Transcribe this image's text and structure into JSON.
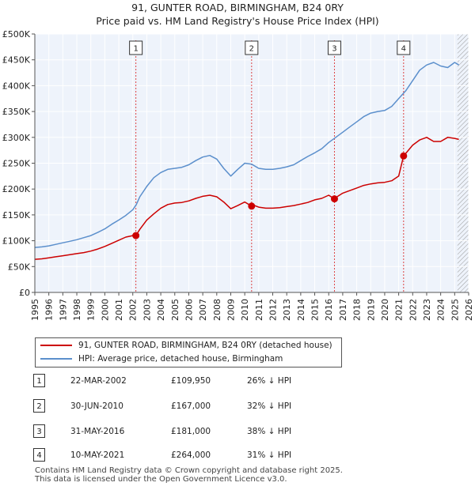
{
  "title_line1": "91, GUNTER ROAD, BIRMINGHAM, B24 0RY",
  "title_line2": "Price paid vs. HM Land Registry's House Price Index (HPI)",
  "chart_data": {
    "type": "line",
    "xlim": [
      1995,
      2026
    ],
    "ylim": [
      0,
      500000
    ],
    "y_ticks": [
      0,
      50000,
      100000,
      150000,
      200000,
      250000,
      300000,
      350000,
      400000,
      450000,
      500000
    ],
    "y_tick_labels": [
      "£0",
      "£50K",
      "£100K",
      "£150K",
      "£200K",
      "£250K",
      "£300K",
      "£350K",
      "£400K",
      "£450K",
      "£500K"
    ],
    "x_ticks": [
      1995,
      1996,
      1997,
      1998,
      1999,
      2000,
      2001,
      2002,
      2003,
      2004,
      2005,
      2006,
      2007,
      2008,
      2009,
      2010,
      2011,
      2012,
      2013,
      2014,
      2015,
      2016,
      2017,
      2018,
      2019,
      2020,
      2021,
      2022,
      2023,
      2024,
      2025,
      2026
    ],
    "x_tick_labels": [
      "1995",
      "1996",
      "1997",
      "1998",
      "1999",
      "2000",
      "2001",
      "2002",
      "2003",
      "2004",
      "2005",
      "2006",
      "2007",
      "2008",
      "2009",
      "2010",
      "2011",
      "2012",
      "2013",
      "2014",
      "2015",
      "2016",
      "2017",
      "2018",
      "2019",
      "2020",
      "2021",
      "2022",
      "2023",
      "2024",
      "2025",
      "2026"
    ],
    "hatch_from": 2025.2,
    "series": [
      {
        "name": "HPI: Average price, detached house, Birmingham",
        "color": "#5b8fcc",
        "x": [
          1995.0,
          1995.5,
          1996.0,
          1996.5,
          1997.0,
          1997.5,
          1998.0,
          1998.5,
          1999.0,
          1999.5,
          2000.0,
          2000.5,
          2001.0,
          2001.5,
          2002.0,
          2002.25,
          2002.5,
          2003.0,
          2003.5,
          2004.0,
          2004.5,
          2005.0,
          2005.5,
          2006.0,
          2006.5,
          2007.0,
          2007.5,
          2008.0,
          2008.5,
          2009.0,
          2009.5,
          2010.0,
          2010.5,
          2011.0,
          2011.5,
          2012.0,
          2012.5,
          2013.0,
          2013.5,
          2014.0,
          2014.5,
          2015.0,
          2015.5,
          2016.0,
          2016.5,
          2017.0,
          2017.5,
          2018.0,
          2018.5,
          2019.0,
          2019.5,
          2020.0,
          2020.5,
          2021.0,
          2021.5,
          2022.0,
          2022.5,
          2023.0,
          2023.5,
          2024.0,
          2024.5,
          2025.0,
          2025.3
        ],
        "y": [
          87000,
          88000,
          90000,
          93000,
          96000,
          99000,
          102000,
          106000,
          110000,
          116000,
          123000,
          132000,
          140000,
          149000,
          160000,
          170000,
          185000,
          205000,
          222000,
          232000,
          238000,
          240000,
          242000,
          247000,
          255000,
          262000,
          265000,
          258000,
          240000,
          225000,
          238000,
          250000,
          248000,
          240000,
          238000,
          238000,
          240000,
          243000,
          247000,
          255000,
          263000,
          270000,
          278000,
          290000,
          300000,
          310000,
          320000,
          330000,
          340000,
          347000,
          350000,
          352000,
          360000,
          375000,
          390000,
          410000,
          430000,
          440000,
          445000,
          438000,
          435000,
          445000,
          440000
        ]
      },
      {
        "name": "91, GUNTER ROAD, BIRMINGHAM, B24 0RY (detached house)",
        "color": "#cc0000",
        "x": [
          1995.0,
          1995.5,
          1996.0,
          1996.5,
          1997.0,
          1997.5,
          1998.0,
          1998.5,
          1999.0,
          1999.5,
          2000.0,
          2000.5,
          2001.0,
          2001.5,
          2002.0,
          2002.22,
          2002.5,
          2003.0,
          2003.5,
          2004.0,
          2004.5,
          2005.0,
          2005.5,
          2006.0,
          2006.5,
          2007.0,
          2007.5,
          2008.0,
          2008.5,
          2009.0,
          2009.5,
          2010.0,
          2010.49,
          2010.7,
          2011.0,
          2011.5,
          2012.0,
          2012.5,
          2013.0,
          2013.5,
          2014.0,
          2014.5,
          2015.0,
          2015.5,
          2016.0,
          2016.41,
          2016.7,
          2017.0,
          2017.5,
          2018.0,
          2018.5,
          2019.0,
          2019.5,
          2020.0,
          2020.5,
          2021.0,
          2021.35,
          2021.6,
          2022.0,
          2022.5,
          2023.0,
          2023.5,
          2024.0,
          2024.5,
          2025.0,
          2025.3
        ],
        "y": [
          64000,
          65000,
          67000,
          69000,
          71000,
          73000,
          75000,
          77000,
          80000,
          84000,
          89000,
          95000,
          101000,
          107000,
          109950,
          109950,
          122000,
          140000,
          152000,
          163000,
          170000,
          173000,
          174000,
          177000,
          182000,
          186000,
          188000,
          185000,
          175000,
          162000,
          168000,
          175000,
          167000,
          168000,
          165000,
          163000,
          163000,
          164000,
          166000,
          168000,
          171000,
          174000,
          179000,
          182000,
          188000,
          181000,
          187000,
          192000,
          197000,
          202000,
          207000,
          210000,
          212000,
          213000,
          216000,
          225000,
          264000,
          272000,
          285000,
          295000,
          300000,
          292000,
          292000,
          300000,
          298000,
          296000
        ]
      }
    ],
    "sales": [
      {
        "label": "1",
        "x": 2002.22,
        "y": 109950
      },
      {
        "label": "2",
        "x": 2010.49,
        "y": 167000
      },
      {
        "label": "3",
        "x": 2016.41,
        "y": 181000
      },
      {
        "label": "4",
        "x": 2021.35,
        "y": 264000
      }
    ]
  },
  "legend": {
    "red_label": "91, GUNTER ROAD, BIRMINGHAM, B24 0RY (detached house)",
    "blue_label": "HPI: Average price, detached house, Birmingham"
  },
  "transactions": [
    {
      "num": "1",
      "date": "22-MAR-2002",
      "price": "£109,950",
      "hpi": "26% ↓ HPI"
    },
    {
      "num": "2",
      "date": "30-JUN-2010",
      "price": "£167,000",
      "hpi": "32% ↓ HPI"
    },
    {
      "num": "3",
      "date": "31-MAY-2016",
      "price": "£181,000",
      "hpi": "38% ↓ HPI"
    },
    {
      "num": "4",
      "date": "10-MAY-2021",
      "price": "£264,000",
      "hpi": "31% ↓ HPI"
    }
  ],
  "footer_line1": "Contains HM Land Registry data © Crown copyright and database right 2025.",
  "footer_line2": "This data is licensed under the Open Government Licence v3.0."
}
